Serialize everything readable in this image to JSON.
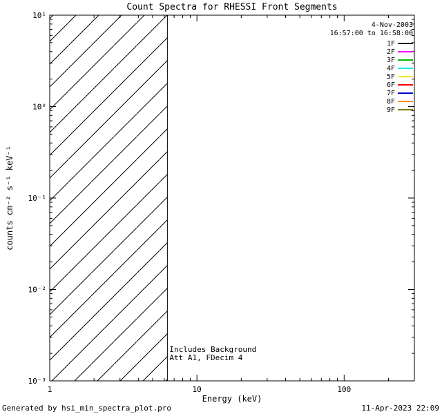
{
  "window": {
    "background": "#ffffff",
    "foreground": "#000000"
  },
  "chart_data": {
    "type": "line",
    "title": "Count Spectra for RHESSI Front Segments",
    "xlabel": "Energy (keV)",
    "ylabel": "counts cm⁻² s⁻¹ keV⁻¹",
    "x_scale": "log",
    "y_scale": "log",
    "xlim": [
      1,
      300
    ],
    "ylim": [
      0.001,
      10
    ],
    "grid": false,
    "x_ticks": [
      {
        "value": 1,
        "label": "1"
      },
      {
        "value": 10,
        "label": "10"
      },
      {
        "value": 100,
        "label": "100"
      }
    ],
    "y_ticks": [
      {
        "value": 10,
        "label": "10¹"
      },
      {
        "value": 1,
        "label": "10⁰"
      },
      {
        "value": 0.1,
        "label": "10⁻¹"
      },
      {
        "value": 0.01,
        "label": "10⁻²"
      },
      {
        "value": 0.001,
        "label": "10⁻³"
      }
    ],
    "hatched_region": {
      "x_start": 1,
      "x_end": 6.3,
      "style": "diagonal-hatch"
    },
    "annotations": [
      "Includes Background",
      "Att A1, FDecim 4"
    ],
    "legend": {
      "position": "top-right",
      "date": "4-Nov-2003",
      "time_range": "16:57:00 to 16:58:00",
      "entries": [
        {
          "label": "1F",
          "color": "#000000"
        },
        {
          "label": "2F",
          "color": "#ff00ff"
        },
        {
          "label": "3F",
          "color": "#00bb00"
        },
        {
          "label": "4F",
          "color": "#00eeee"
        },
        {
          "label": "5F",
          "color": "#f2e400"
        },
        {
          "label": "6F",
          "color": "#ff0000"
        },
        {
          "label": "7F",
          "color": "#0000cc"
        },
        {
          "label": "8F",
          "color": "#ff8800"
        },
        {
          "label": "9F",
          "color": "#7a7a00"
        }
      ]
    },
    "series": []
  },
  "footer": {
    "left": "Generated by hsi_min_spectra_plot.pro",
    "right": "11-Apr-2023 22:09"
  }
}
